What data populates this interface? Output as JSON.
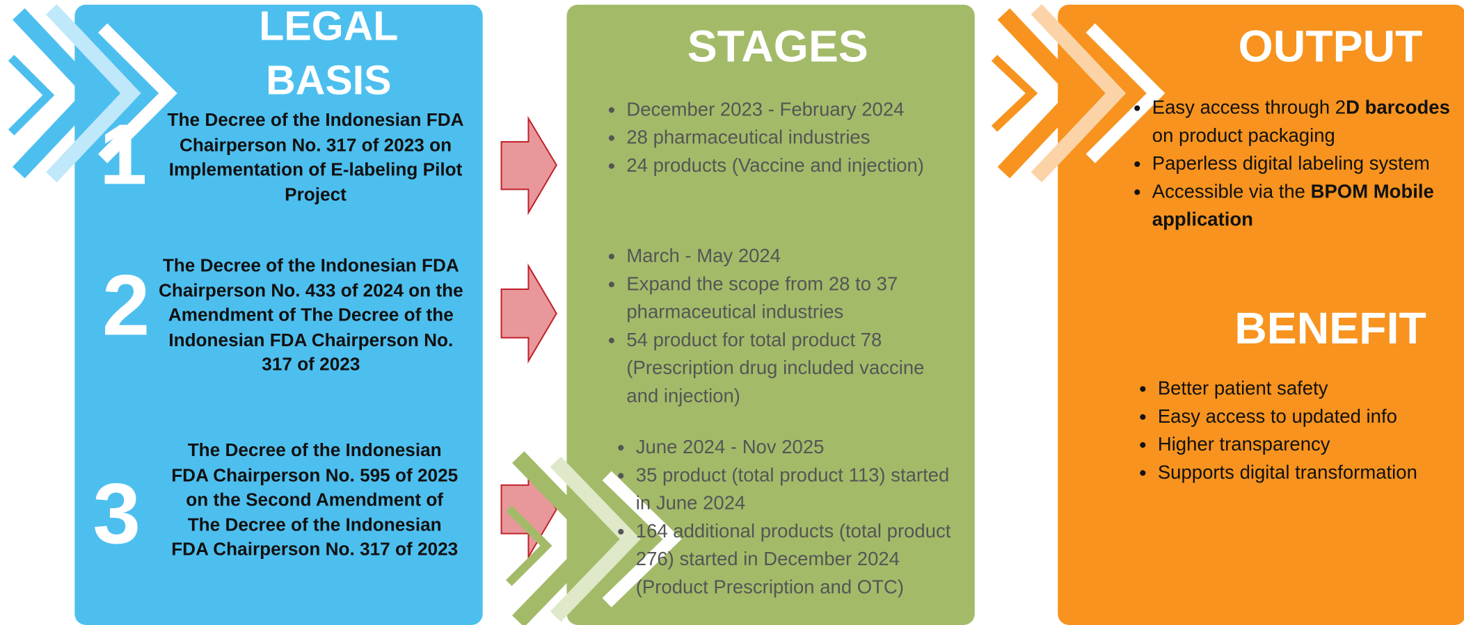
{
  "legal_basis": {
    "title": "LEGAL BASIS",
    "items": [
      {
        "number": "1",
        "text": "The Decree of the Indonesian FDA Chairperson No. 317 of 2023 on Implementation of E-labeling Pilot Project"
      },
      {
        "number": "2",
        "text": "The Decree of the Indonesian FDA Chairperson No. 433 of 2024 on the Amendment of The Decree of the Indonesian FDA Chairperson No. 317 of 2023"
      },
      {
        "number": "3",
        "text": "The Decree of the Indonesian FDA Chairperson No. 595 of 2025 on the Second Amendment of The Decree of the Indonesian FDA Chairperson No. 317 of 2023"
      }
    ]
  },
  "stages": {
    "title": "STAGES",
    "groups": [
      [
        "December 2023 - February 2024",
        "28 pharmaceutical industries",
        "24 products (Vaccine and injection)"
      ],
      [
        "March - May 2024",
        "Expand the scope from 28 to 37 pharmaceutical industries",
        "54 product for total product 78 (Prescription drug included vaccine and injection)"
      ],
      [
        "June 2024 - Nov 2025",
        "35 product (total product 113) started in June 2024",
        "164 additional products (total product 276) started in December 2024 (Product Prescription and OTC)"
      ]
    ]
  },
  "output": {
    "title": "OUTPUT",
    "items": [
      [
        "Easy access through 2",
        "D barcodes",
        " on product packaging"
      ],
      [
        "Paperless digital labeling system"
      ],
      [
        "Accessible via the ",
        "BPOM Mobile application"
      ]
    ]
  },
  "benefit": {
    "title": "BENEFIT",
    "items": [
      "Better patient safety",
      "Easy access to updated info",
      "Higher transparency",
      "Supports digital transformation"
    ]
  }
}
